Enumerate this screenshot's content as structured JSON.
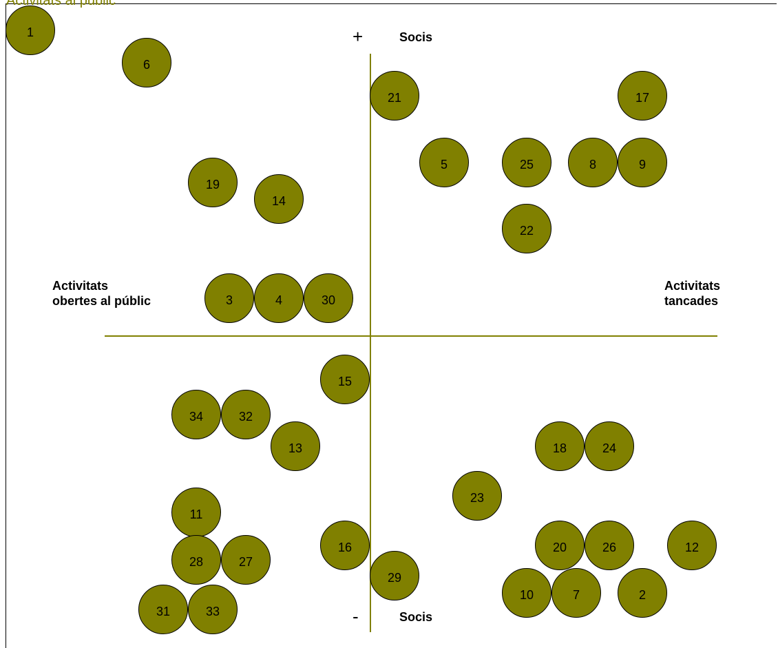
{
  "caption": "Activitats al públic",
  "axes": {
    "top_sign": "+",
    "top_label": "Socis",
    "bottom_sign": "-",
    "bottom_label": "Socis",
    "left_label_line1": "Activitats",
    "left_label_line2": "obertes al públic",
    "right_label_line1": "Activitats",
    "right_label_line2": "tancades"
  },
  "colors": {
    "bubble_fill": "#808000",
    "axis_line": "#808000",
    "caption": "#808000",
    "text": "#000000"
  },
  "bubbles": [
    "1",
    "6",
    "19",
    "14",
    "3",
    "4",
    "30",
    "21",
    "17",
    "5",
    "25",
    "8",
    "9",
    "22",
    "15",
    "34",
    "32",
    "13",
    "11",
    "28",
    "27",
    "31",
    "33",
    "16",
    "29",
    "18",
    "24",
    "23",
    "20",
    "26",
    "12",
    "10",
    "7",
    "2"
  ]
}
